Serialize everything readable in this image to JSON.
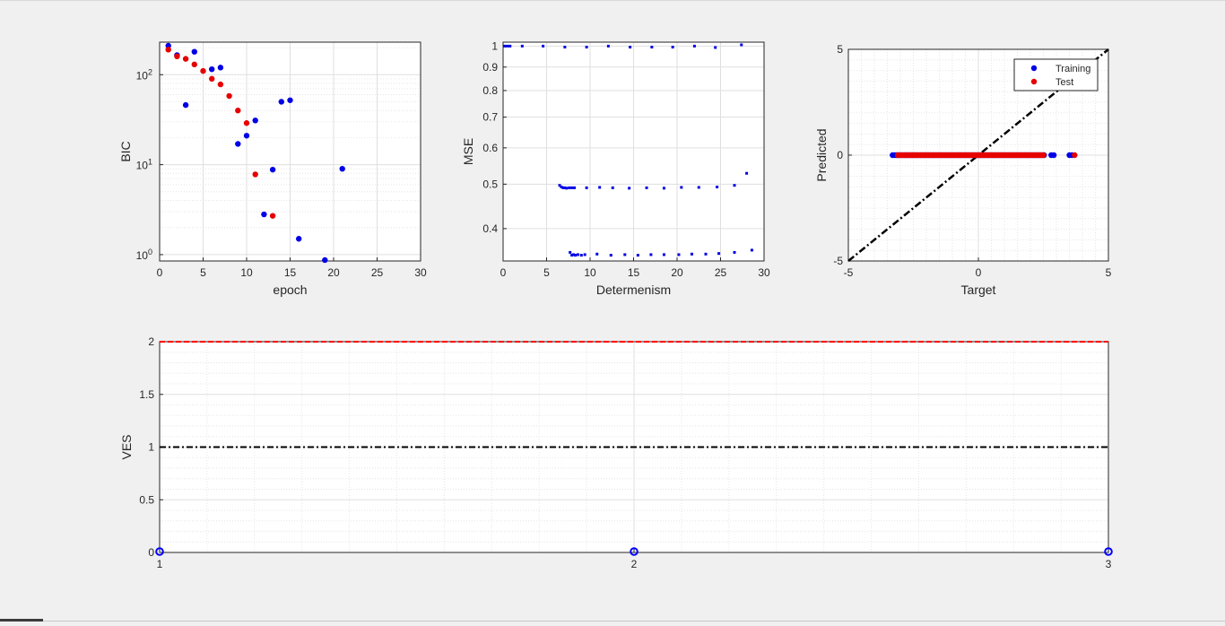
{
  "chart_data": [
    {
      "type": "scatter",
      "xlabel": "epoch",
      "ylabel": "BIC",
      "xlim": [
        0,
        30
      ],
      "ylim": [
        0.85,
        230
      ],
      "yscale": "log",
      "grid": true,
      "xticks": [
        0,
        5,
        10,
        15,
        20,
        25,
        30
      ],
      "yticks": [
        1,
        10,
        100
      ],
      "yticklabels": [
        {
          "base": "10",
          "exp": "0"
        },
        {
          "base": "10",
          "exp": "1"
        },
        {
          "base": "10",
          "exp": "2"
        }
      ],
      "series": [
        {
          "color": "#0000e6",
          "x": [
            1,
            2,
            3,
            4,
            6,
            7,
            9,
            10,
            11,
            12,
            13,
            14,
            15,
            16,
            19,
            21
          ],
          "y": [
            210,
            165,
            46,
            180,
            115,
            120,
            17,
            21,
            31,
            2.8,
            8.8,
            50,
            52,
            1.5,
            0.87,
            9
          ]
        },
        {
          "color": "#e60000",
          "x": [
            1,
            2,
            3,
            4,
            5,
            6,
            7,
            8,
            9,
            10,
            11,
            13
          ],
          "y": [
            190,
            160,
            150,
            130,
            110,
            90,
            78,
            58,
            40,
            29,
            7.8,
            2.7
          ]
        }
      ]
    },
    {
      "type": "scatter",
      "xlabel": "Determenism",
      "ylabel": "MSE",
      "xlim": [
        0,
        30
      ],
      "ylim": [
        0.34,
        1.02
      ],
      "yscale": "log",
      "grid": true,
      "xticks": [
        0,
        5,
        10,
        15,
        20,
        25,
        30
      ],
      "yticks": [
        0.4,
        0.5,
        0.6,
        0.7,
        0.8,
        0.9,
        1
      ],
      "series": [
        {
          "color": "#0000e6",
          "x": [
            0.2,
            0.5,
            0.8,
            2.2,
            4.6,
            7.1,
            9.6,
            12.1,
            14.6,
            17.1,
            19.5,
            22.0,
            24.4,
            27.4,
            6.5,
            6.7,
            6.9,
            7.1,
            7.3,
            7.6,
            7.9,
            8.2,
            9.6,
            11.1,
            12.6,
            14.5,
            16.5,
            18.5,
            20.5,
            22.5,
            24.6,
            26.6,
            28.0,
            7.7,
            7.9,
            8.1,
            8.3,
            8.6,
            9.0,
            9.4,
            10.8,
            12.4,
            14.0,
            15.5,
            17.0,
            18.5,
            20.2,
            21.7,
            23.3,
            24.8,
            26.6,
            28.6
          ],
          "y": [
            1.0,
            1.0,
            1.0,
            1.0,
            1.0,
            0.995,
            0.995,
            1.0,
            0.995,
            0.995,
            0.995,
            1.0,
            0.993,
            1.015,
            0.497,
            0.493,
            0.491,
            0.491,
            0.49,
            0.491,
            0.491,
            0.491,
            0.491,
            0.492,
            0.491,
            0.49,
            0.491,
            0.49,
            0.492,
            0.492,
            0.493,
            0.497,
            0.528,
            0.355,
            0.35,
            0.351,
            0.35,
            0.351,
            0.35,
            0.351,
            0.352,
            0.35,
            0.351,
            0.35,
            0.351,
            0.351,
            0.351,
            0.352,
            0.352,
            0.353,
            0.355,
            0.359
          ]
        }
      ]
    },
    {
      "type": "scatter",
      "xlabel": "Target",
      "ylabel": "Predicted",
      "xlim": [
        -5,
        5
      ],
      "ylim": [
        -5,
        5
      ],
      "grid": true,
      "xticks": [
        -5,
        0,
        5
      ],
      "yticks": [
        -5,
        0,
        5
      ],
      "legend": {
        "placement": "top-right",
        "entries": [
          {
            "label": "Training",
            "color": "#0000e6"
          },
          {
            "label": "Test",
            "color": "#e60000"
          }
        ]
      },
      "series": [
        {
          "name": "Training",
          "color": "#0000e6",
          "x_range": [
            -3.3,
            3.6
          ],
          "extra_x": [
            2.8,
            2.9,
            3.5,
            3.6
          ],
          "y": 0
        },
        {
          "name": "Test",
          "color": "#e60000",
          "x_range": [
            -3.1,
            2.5
          ],
          "extra_x": [
            3.7
          ],
          "y": 0
        },
        {
          "name": "reference",
          "style": "dash-dot",
          "color": "#000000",
          "x": [
            -5,
            5
          ],
          "y": [
            -5,
            5
          ]
        }
      ]
    },
    {
      "type": "line",
      "xlabel": "",
      "ylabel": "VES",
      "xlim": [
        1,
        3
      ],
      "ylim": [
        0,
        2
      ],
      "grid": true,
      "xticks": [
        1,
        2,
        3
      ],
      "yticks": [
        0,
        0.5,
        1,
        1.5,
        2
      ],
      "series": [
        {
          "color": "#ff0000",
          "style": "dashed",
          "x": [
            1,
            3
          ],
          "y": [
            2,
            2
          ]
        },
        {
          "color": "#000000",
          "style": "dash-dot",
          "x": [
            1,
            3
          ],
          "y": [
            1,
            1
          ]
        },
        {
          "color": "#0000ff",
          "style": "markers-circle",
          "x": [
            1,
            2,
            3
          ],
          "y": [
            0,
            0,
            0
          ]
        }
      ]
    }
  ]
}
